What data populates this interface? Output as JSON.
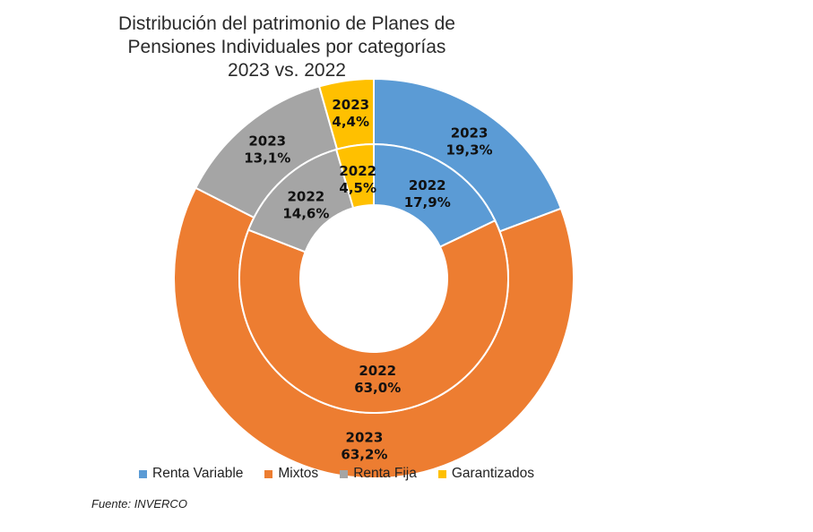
{
  "chart_data": {
    "type": "pie",
    "style": "nested-donut",
    "title_lines": [
      "Distribución del patrimonio de Planes de",
      "Pensiones Individuales por categorías",
      "2023 vs. 2022"
    ],
    "categories": [
      "Renta Variable",
      "Mixtos",
      "Renta Fija",
      "Garantizados"
    ],
    "colors": [
      "#5B9BD5",
      "#ED7D31",
      "#A5A5A5",
      "#FFC000"
    ],
    "series": [
      {
        "name": "2023",
        "ring": "outer",
        "values": [
          19.3,
          63.2,
          13.1,
          4.4
        ],
        "labels": [
          [
            "2023",
            "19,3%"
          ],
          [
            "2023",
            "63,2%"
          ],
          [
            "2023",
            "13,1%"
          ],
          [
            "2023",
            "4,4%"
          ]
        ]
      },
      {
        "name": "2022",
        "ring": "inner",
        "values": [
          17.9,
          63.0,
          14.6,
          4.5
        ],
        "labels": [
          [
            "2022",
            "17,9%"
          ],
          [
            "2022",
            "63,0%"
          ],
          [
            "2022",
            "14,6%"
          ],
          [
            "2022",
            "4,5%"
          ]
        ]
      }
    ],
    "legend": {
      "position": "bottom",
      "entries": [
        "Renta Variable",
        "Mixtos",
        "Renta Fija",
        "Garantizados"
      ]
    },
    "source": "Fuente: INVERCO"
  }
}
